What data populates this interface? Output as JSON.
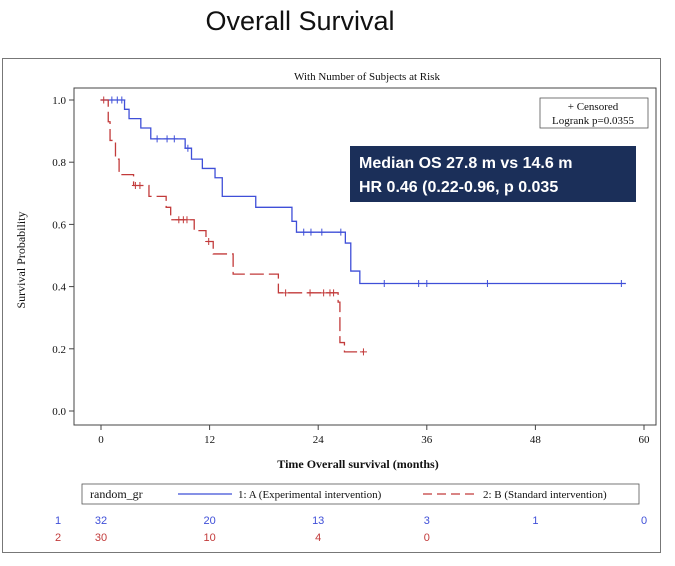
{
  "page_title": "Overall Survival",
  "chart_data": {
    "type": "line",
    "title": "With Number of Subjects at Risk",
    "xlabel": "Time Overall survival (months)",
    "ylabel": "Survival Probability",
    "xlim": [
      0,
      60
    ],
    "ylim": [
      0,
      1.0
    ],
    "x_ticks": [
      0,
      12,
      24,
      36,
      48,
      60
    ],
    "y_ticks": [
      0.0,
      0.2,
      0.4,
      0.6,
      0.8,
      1.0
    ],
    "grid": false,
    "censored_legend": "+ Censored",
    "logrank_text": "Logrank p=0.0355",
    "annotation": {
      "line1": "Median OS 27.8 m vs 14.6 m",
      "line2": "HR 0.46 (0.22-0.96, p 0.035",
      "bg_color": "#1b2f59",
      "text_color": "#ffffff"
    },
    "legend": {
      "group_label": "random_gr",
      "position": "bottom"
    },
    "series": [
      {
        "name": "1: A (Experimental intervention)",
        "color": "#3f4fd8",
        "line_style": "solid",
        "steps": [
          [
            0,
            1.0
          ],
          [
            2.6,
            0.97
          ],
          [
            3.1,
            0.94
          ],
          [
            4.4,
            0.91
          ],
          [
            5.5,
            0.875
          ],
          [
            9.3,
            0.845
          ],
          [
            10.0,
            0.81
          ],
          [
            11.2,
            0.78
          ],
          [
            12.6,
            0.75
          ],
          [
            13.4,
            0.69
          ],
          [
            17.1,
            0.655
          ],
          [
            21.1,
            0.61
          ],
          [
            21.6,
            0.575
          ],
          [
            27.0,
            0.54
          ],
          [
            27.6,
            0.45
          ],
          [
            28.6,
            0.41
          ]
        ],
        "end_x": 58,
        "censor_x": [
          1.2,
          1.8,
          2.3,
          6.2,
          7.3,
          8.1,
          9.6,
          22.4,
          23.2,
          24.4,
          26.5,
          31.3,
          35.1,
          36.0,
          42.7,
          57.5
        ],
        "at_risk": [
          32,
          20,
          13,
          3,
          1,
          0
        ]
      },
      {
        "name": "2: B (Standard intervention)",
        "color": "#c23a3a",
        "line_style": "dashed",
        "steps": [
          [
            0,
            1.0
          ],
          [
            0.8,
            0.93
          ],
          [
            1.0,
            0.87
          ],
          [
            1.6,
            0.81
          ],
          [
            2.0,
            0.76
          ],
          [
            3.6,
            0.725
          ],
          [
            5.3,
            0.69
          ],
          [
            7.2,
            0.655
          ],
          [
            7.7,
            0.615
          ],
          [
            10.3,
            0.58
          ],
          [
            11.6,
            0.545
          ],
          [
            12.4,
            0.505
          ],
          [
            14.6,
            0.44
          ],
          [
            19.6,
            0.38
          ],
          [
            26.2,
            0.35
          ],
          [
            26.4,
            0.22
          ],
          [
            26.9,
            0.19
          ]
        ],
        "end_x": 29,
        "censor_x": [
          0.3,
          3.8,
          4.3,
          8.6,
          9.1,
          9.5,
          11.9,
          20.4,
          23.1,
          24.6,
          25.3,
          25.7,
          29.0
        ],
        "at_risk": [
          30,
          10,
          4,
          0
        ]
      }
    ],
    "at_risk_rows": [
      "1",
      "2"
    ]
  }
}
